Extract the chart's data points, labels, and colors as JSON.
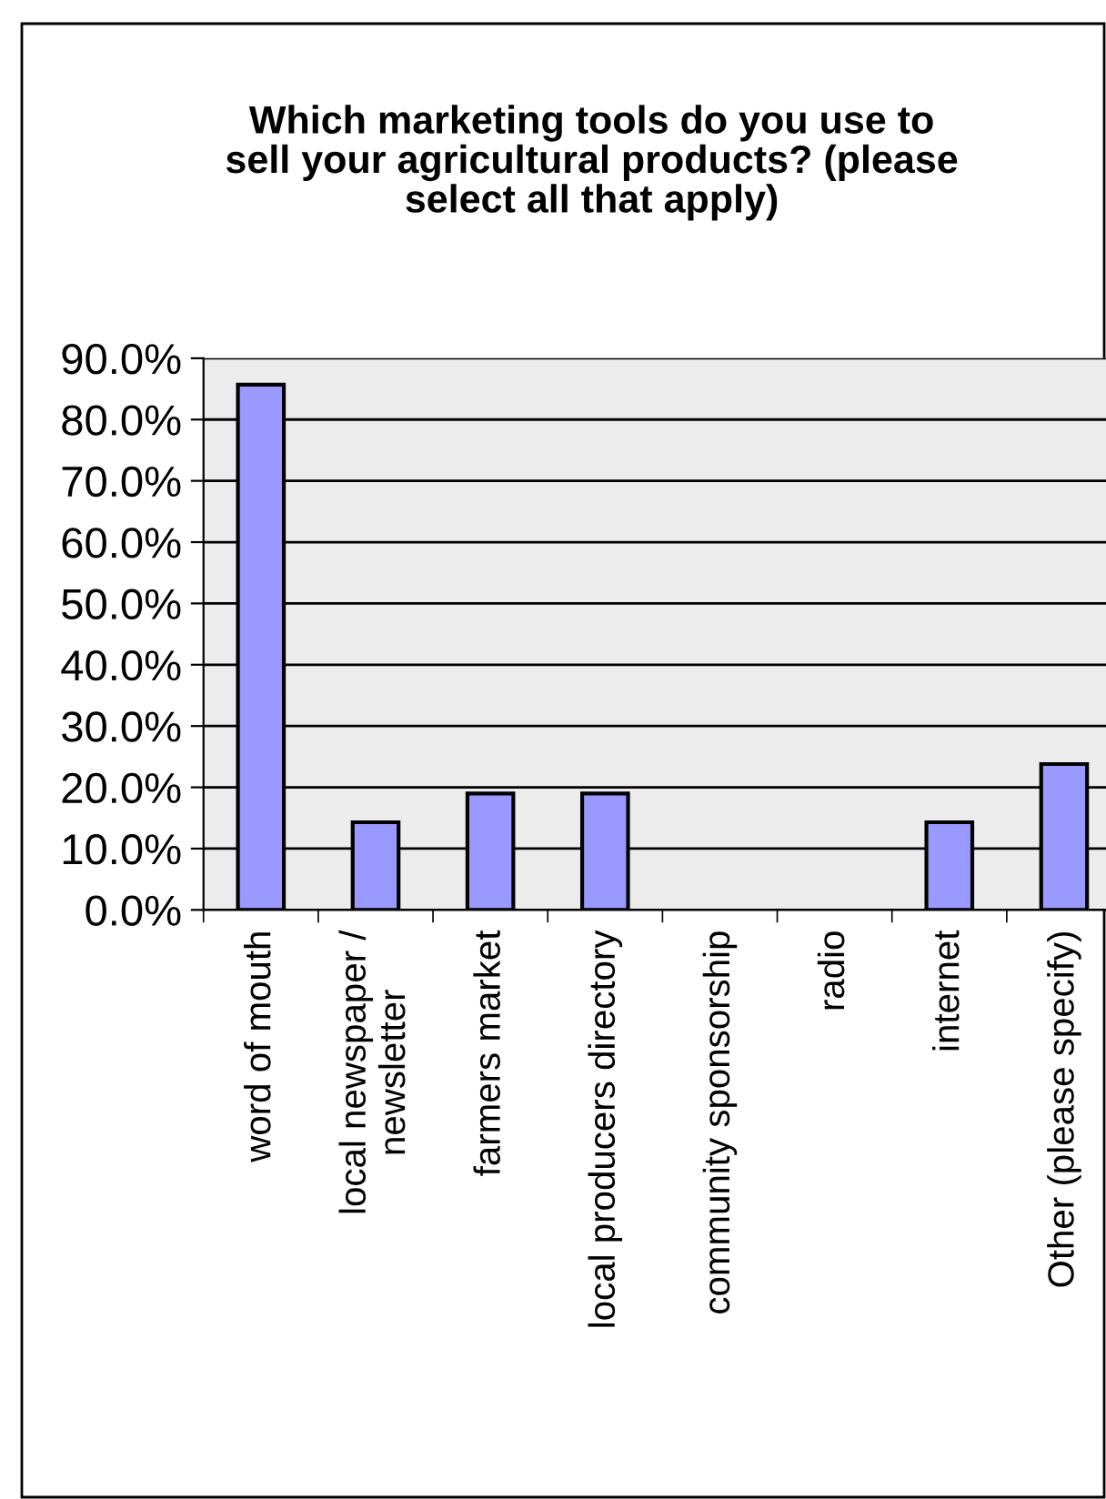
{
  "chart_data": {
    "type": "bar",
    "title": "Which marketing tools do you use to\nsell your agricultural products? (please\nselect all that apply)",
    "categories": [
      "word of mouth",
      "local newspaper /\nnewsletter",
      "farmers market",
      "local producers directory",
      "community sponsorship",
      "radio",
      "internet",
      "Other (please specify)"
    ],
    "values": [
      85.7,
      14.3,
      19.0,
      19.0,
      0,
      0,
      14.3,
      23.8
    ],
    "color": "#9999ff",
    "ylim": [
      0,
      90
    ],
    "yticks": [
      {
        "value": 0,
        "label": "0.0%"
      },
      {
        "value": 10,
        "label": "10.0%"
      },
      {
        "value": 20,
        "label": "20.0%"
      },
      {
        "value": 30,
        "label": "30.0%"
      },
      {
        "value": 40,
        "label": "40.0%"
      },
      {
        "value": 50,
        "label": "50.0%"
      },
      {
        "value": 60,
        "label": "60.0%"
      },
      {
        "value": 70,
        "label": "70.0%"
      },
      {
        "value": 80,
        "label": "80.0%"
      },
      {
        "value": 90,
        "label": "90.0%"
      }
    ],
    "grid": "y",
    "legend": false
  }
}
